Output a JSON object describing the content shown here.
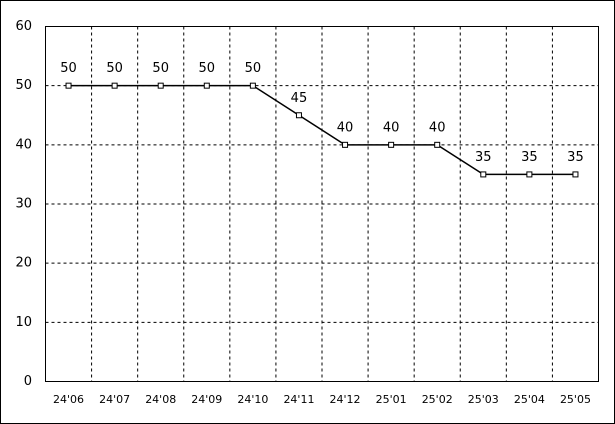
{
  "chart_data": {
    "type": "line",
    "categories": [
      "24'06",
      "24'07",
      "24'08",
      "24'09",
      "24'10",
      "24'11",
      "24'12",
      "25'01",
      "25'02",
      "25'03",
      "25'04",
      "25'05"
    ],
    "values": [
      50,
      50,
      50,
      50,
      50,
      45,
      40,
      40,
      40,
      35,
      35,
      35
    ],
    "color": "#000000",
    "ylim": [
      0,
      60
    ],
    "yticks": [
      0,
      10,
      20,
      30,
      40,
      50,
      60
    ],
    "grid": true
  }
}
